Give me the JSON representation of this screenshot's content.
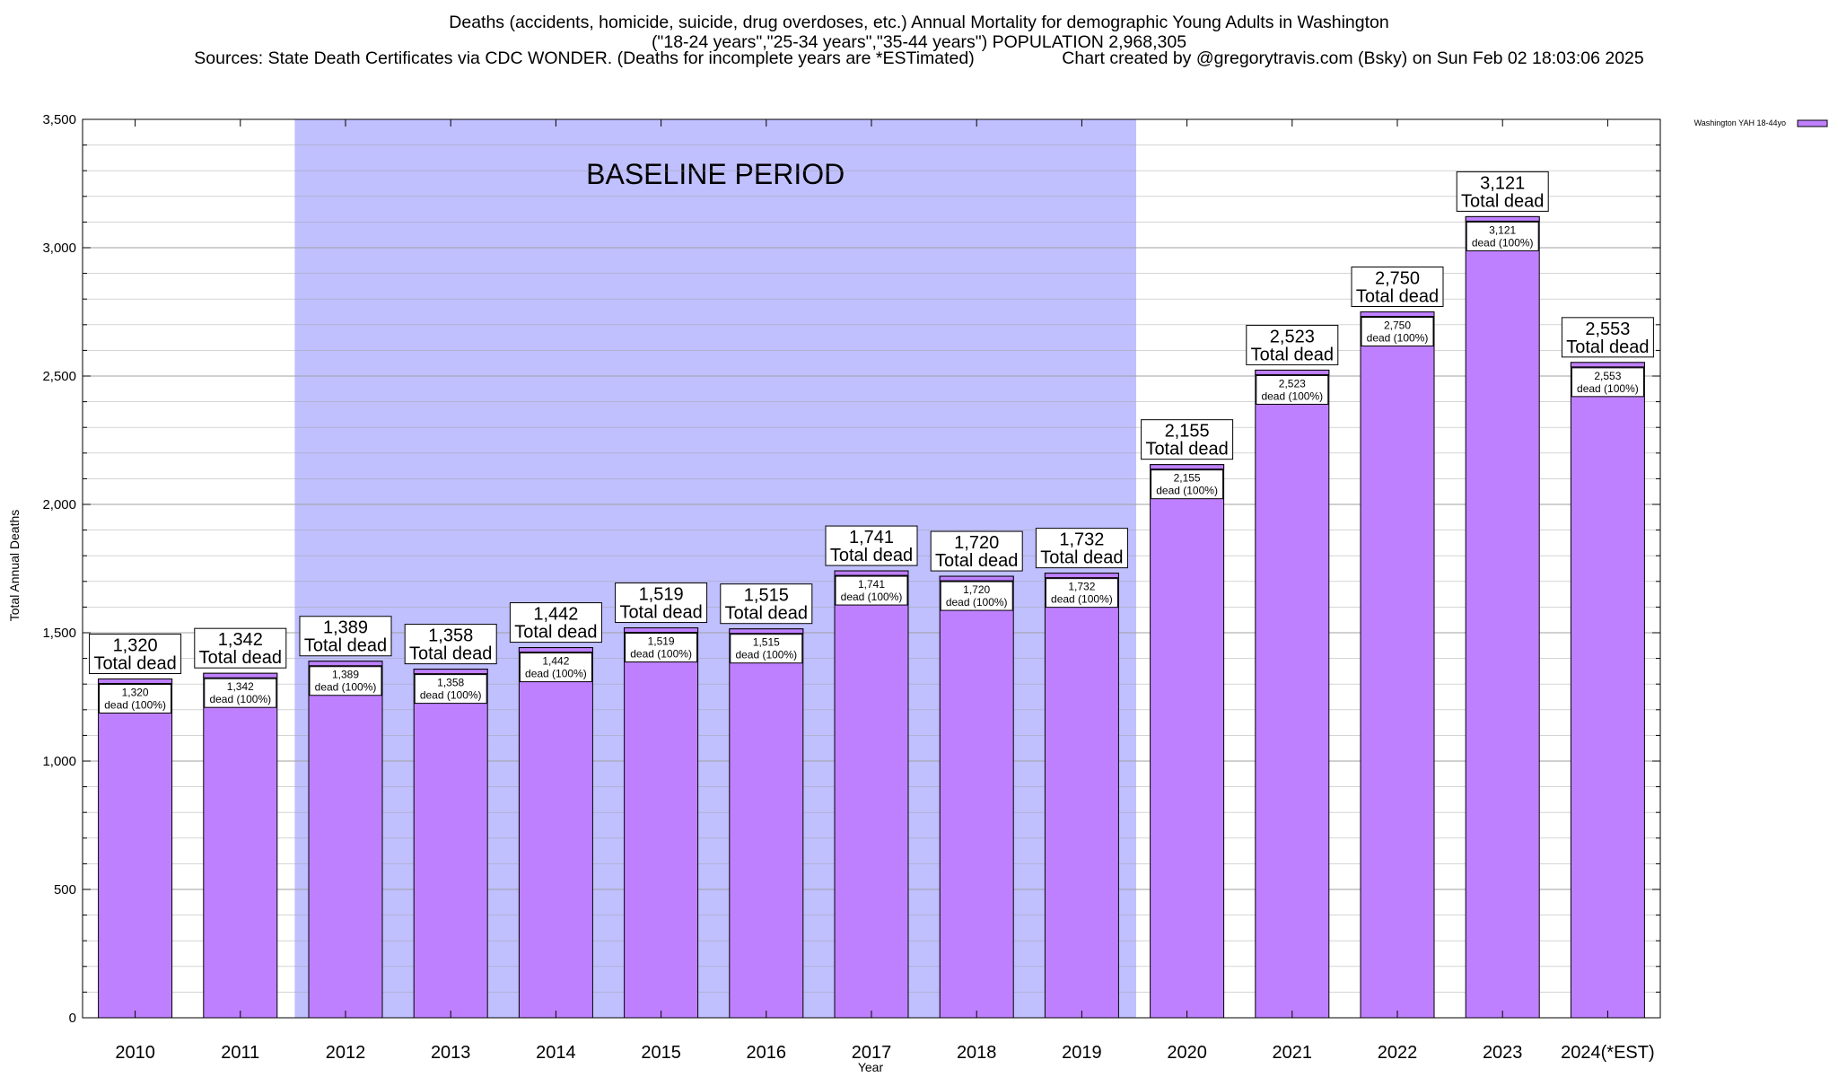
{
  "header": {
    "title_line1": "Deaths (accidents, homicide, suicide, drug overdoses, etc.) Annual Mortality for demographic Young Adults in Washington",
    "title_line2": "(\"18-24 years\",\"25-34 years\",\"35-44 years\") POPULATION 2,968,305",
    "sources": "Sources: State Death Certificates via CDC WONDER. (Deaths for incomplete years are *ESTimated)",
    "credit": "Chart created by @gregorytravis.com (Bsky) on Sun Feb 02 18:03:06 2025"
  },
  "colors": {
    "bar_fill": "#bf80ff",
    "bar_top_band": "#bf80ff",
    "baseline_shade": "#c0c0ff",
    "grid": "#a0a0a0",
    "axis": "#000000"
  },
  "chart_data": {
    "type": "bar",
    "title": "Deaths (accidents, homicide, suicide, drug overdoses, etc.) Annual Mortality for demographic Young Adults in Washington",
    "xlabel": "Year",
    "ylabel": "Total Annual Deaths",
    "ylim": [
      0,
      3500
    ],
    "y_ticks": [
      0,
      500,
      1000,
      1500,
      2000,
      2500,
      3000,
      3500
    ],
    "y_tick_labels": [
      "0",
      "500",
      "1,000",
      "1,500",
      "2,000",
      "2,500",
      "3,000",
      "3,500"
    ],
    "minor_grid_step": 100,
    "grid": true,
    "legend_position": "top-right",
    "categories": [
      "2010",
      "2011",
      "2012",
      "2013",
      "2014",
      "2015",
      "2016",
      "2017",
      "2018",
      "2019",
      "2020",
      "2021",
      "2022",
      "2023",
      "2024(*EST)"
    ],
    "series": [
      {
        "name": "Washington YAH 18-44yo",
        "values": [
          1320,
          1342,
          1389,
          1358,
          1442,
          1519,
          1515,
          1741,
          1720,
          1732,
          2155,
          2523,
          2750,
          3121,
          2553
        ]
      }
    ],
    "value_labels": [
      "1,320",
      "1,342",
      "1,389",
      "1,358",
      "1,442",
      "1,519",
      "1,515",
      "1,741",
      "1,720",
      "1,732",
      "2,155",
      "2,523",
      "2,750",
      "3,121",
      "2,553"
    ],
    "total_label_text": "Total dead",
    "inner_label_text": "dead (100%)",
    "annotation": {
      "text": "BASELINE PERIOD",
      "from_category": "2012",
      "to_category": "2019"
    }
  }
}
